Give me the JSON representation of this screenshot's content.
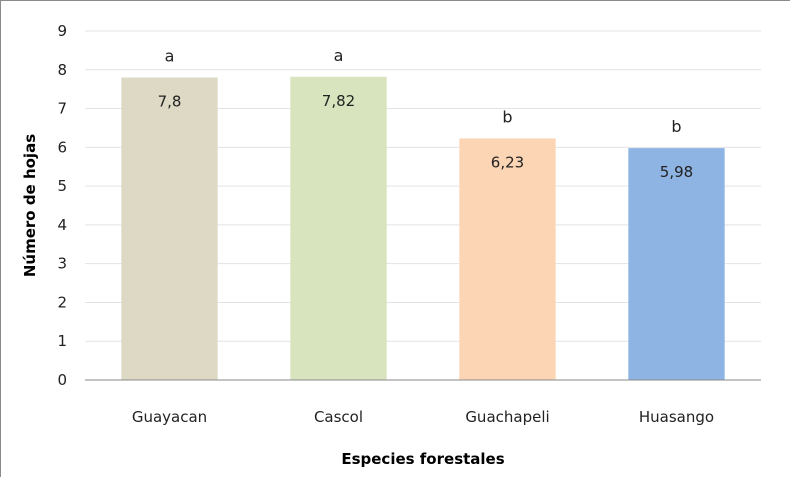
{
  "chart_data": {
    "type": "bar",
    "title": "",
    "xlabel": "Especies forestales",
    "ylabel": "Número de hojas",
    "ylim": [
      0,
      9
    ],
    "yticks": [
      0,
      1,
      2,
      3,
      4,
      5,
      6,
      7,
      8,
      9
    ],
    "grid": true,
    "legend": "none",
    "categories": [
      "Guayacan",
      "Cascol",
      "Guachapeli",
      "Huasango"
    ],
    "values": [
      7.8,
      7.82,
      6.23,
      5.98
    ],
    "data_labels": [
      "7,8",
      "7,82",
      "6,23",
      "5,98"
    ],
    "group_letters": [
      "a",
      "a",
      "b",
      "b"
    ],
    "colors": [
      "#ddd9c4",
      "#d7e4bd",
      "#fcd5b5",
      "#8eb4e3"
    ]
  }
}
